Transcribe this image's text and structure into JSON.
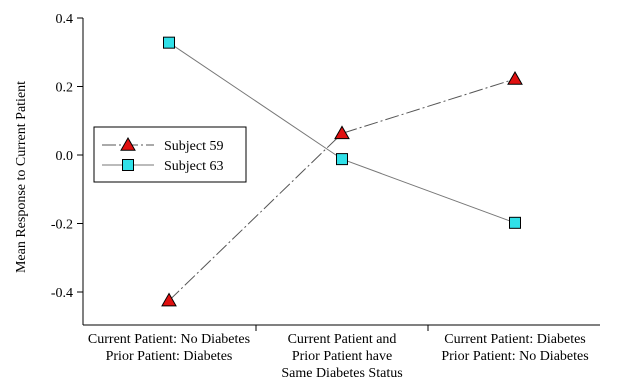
{
  "chart_data": {
    "type": "line",
    "title": "",
    "xlabel": "",
    "ylabel": "Mean Response to Current Patient",
    "ylim": [
      -0.5,
      0.4
    ],
    "yticks": [
      0.4,
      0.2,
      0.0,
      -0.2,
      -0.4
    ],
    "ytick_labels": [
      "0.4",
      "0.2",
      "0.0",
      "-0.2",
      "-0.4"
    ],
    "categories": [
      [
        "Current Patient: No Diabetes",
        "Prior Patient: Diabetes"
      ],
      [
        "Current Patient and",
        "Prior Patient have",
        "Same Diabetes Status"
      ],
      [
        "Current Patient: Diabetes",
        "Prior Patient: No Diabetes"
      ]
    ],
    "series": [
      {
        "name": "Subject 59",
        "values": [
          -0.425,
          0.063,
          0.222
        ],
        "marker": "triangle",
        "line": "dashed",
        "color": "#e01010"
      },
      {
        "name": "Subject 63",
        "values": [
          0.328,
          -0.012,
          -0.198
        ],
        "marker": "square",
        "line": "solid",
        "color": "#30e0e8"
      }
    ],
    "legend_position": "left-middle",
    "grid": false
  }
}
